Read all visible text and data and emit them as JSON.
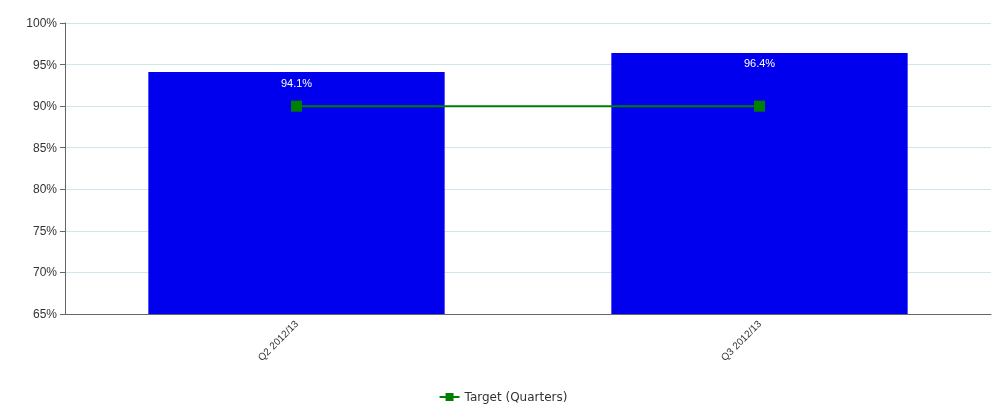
{
  "chart_data": {
    "type": "bar",
    "categories": [
      "Q2 2012/13",
      "Q3 2012/13"
    ],
    "series": [
      {
        "color": "#0000ee",
        "values": [
          94.1,
          96.4
        ],
        "value_labels": [
          "94.1%",
          "96.4%"
        ]
      },
      {
        "type": "line",
        "name": "Target (Quarters)",
        "color": "#008000",
        "values": [
          90,
          90
        ],
        "marker": "square"
      }
    ],
    "ylim": [
      65,
      100
    ],
    "yticks": [
      {
        "value": 65,
        "label": "65%"
      },
      {
        "value": 70,
        "label": "70%"
      },
      {
        "value": 75,
        "label": "75%"
      },
      {
        "value": 80,
        "label": "80%"
      },
      {
        "value": 85,
        "label": "85%"
      },
      {
        "value": 90,
        "label": "90%"
      },
      {
        "value": 95,
        "label": "95%"
      },
      {
        "value": 100,
        "label": "100%"
      }
    ],
    "grid": "y",
    "legend": "bottom"
  }
}
